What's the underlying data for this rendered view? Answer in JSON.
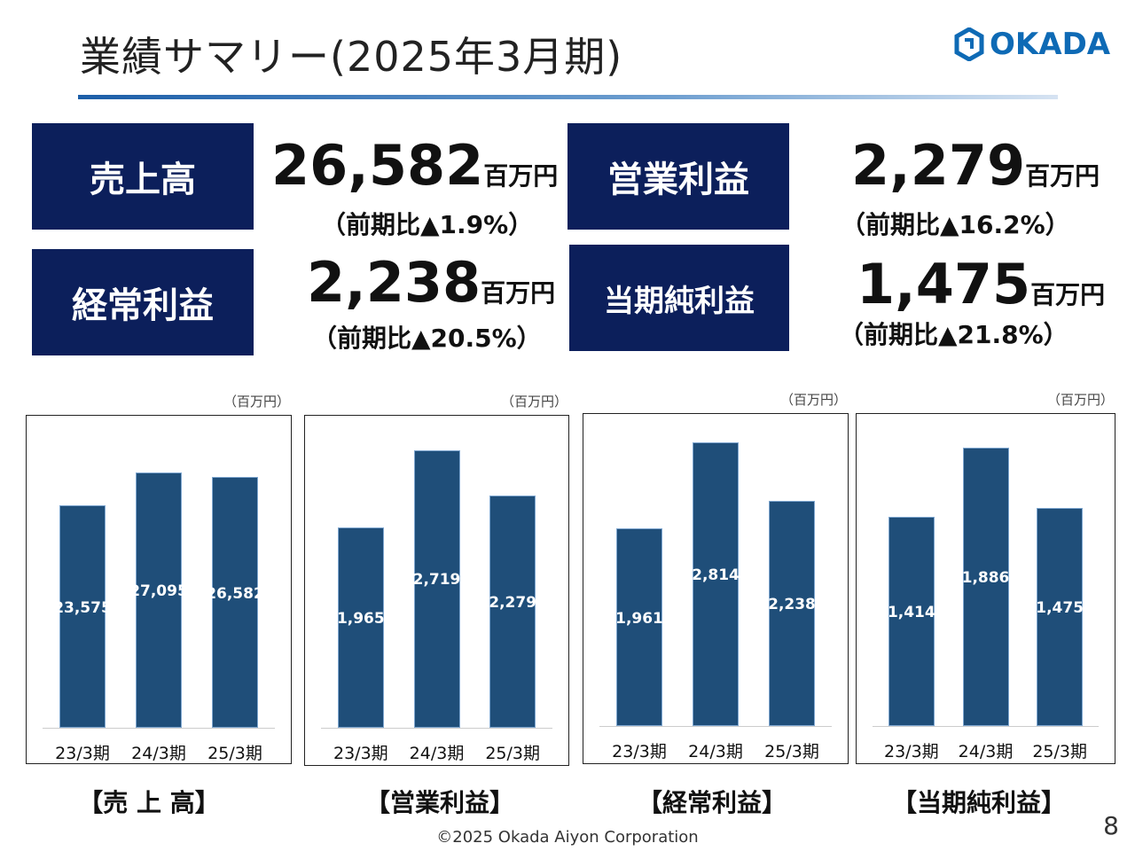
{
  "header": {
    "title": "業績サマリー(2025年3月期)",
    "logo_text": "OKADA"
  },
  "kpis": [
    {
      "label": "売上高",
      "value": "26,582",
      "unit": "百万円",
      "change": "（前期比▲1.9%）"
    },
    {
      "label": "営業利益",
      "value": "2,279",
      "unit": "百万円",
      "change": "（前期比▲16.2%）"
    },
    {
      "label": "経常利益",
      "value": "2,238",
      "unit": "百万円",
      "change": "（前期比▲20.5%）"
    },
    {
      "label": "当期純利益",
      "value": "1,475",
      "unit": "百万円",
      "change": "（前期比▲21.8%）"
    }
  ],
  "chart_data": [
    {
      "type": "bar",
      "title": "【売 上 高】",
      "unit": "（百万円）",
      "categories": [
        "23/3期",
        "24/3期",
        "25/3期"
      ],
      "values": [
        23575,
        27095,
        26582
      ],
      "value_labels": [
        "23,575",
        "27,095",
        "26,582"
      ],
      "ylim": [
        0,
        32900
      ],
      "color": "#1f4e79"
    },
    {
      "type": "bar",
      "title": "【営業利益】",
      "unit": "（百万円）",
      "categories": [
        "23/3期",
        "24/3期",
        "25/3期"
      ],
      "values": [
        1965,
        2719,
        2279
      ],
      "value_labels": [
        "1,965",
        "2,719",
        "2,279"
      ],
      "ylim": [
        0,
        3040
      ],
      "color": "#1f4e79"
    },
    {
      "type": "bar",
      "title": "【経常利益】",
      "unit": "（百万円）",
      "categories": [
        "23/3期",
        "24/3期",
        "25/3期"
      ],
      "values": [
        1961,
        2814,
        2238
      ],
      "value_labels": [
        "1,961",
        "2,814",
        "2,238"
      ],
      "ylim": [
        0,
        3080
      ],
      "color": "#1f4e79"
    },
    {
      "type": "bar",
      "title": "【当期純利益】",
      "unit": "（百万円）",
      "categories": [
        "23/3期",
        "24/3期",
        "25/3期"
      ],
      "values": [
        1414,
        1886,
        1475
      ],
      "value_labels": [
        "1,414",
        "1,886",
        "1,475"
      ],
      "ylim": [
        0,
        2100
      ],
      "color": "#1f4e79"
    }
  ],
  "footer": {
    "copyright": "©2025 Okada Aiyon Corporation",
    "page": "8"
  }
}
